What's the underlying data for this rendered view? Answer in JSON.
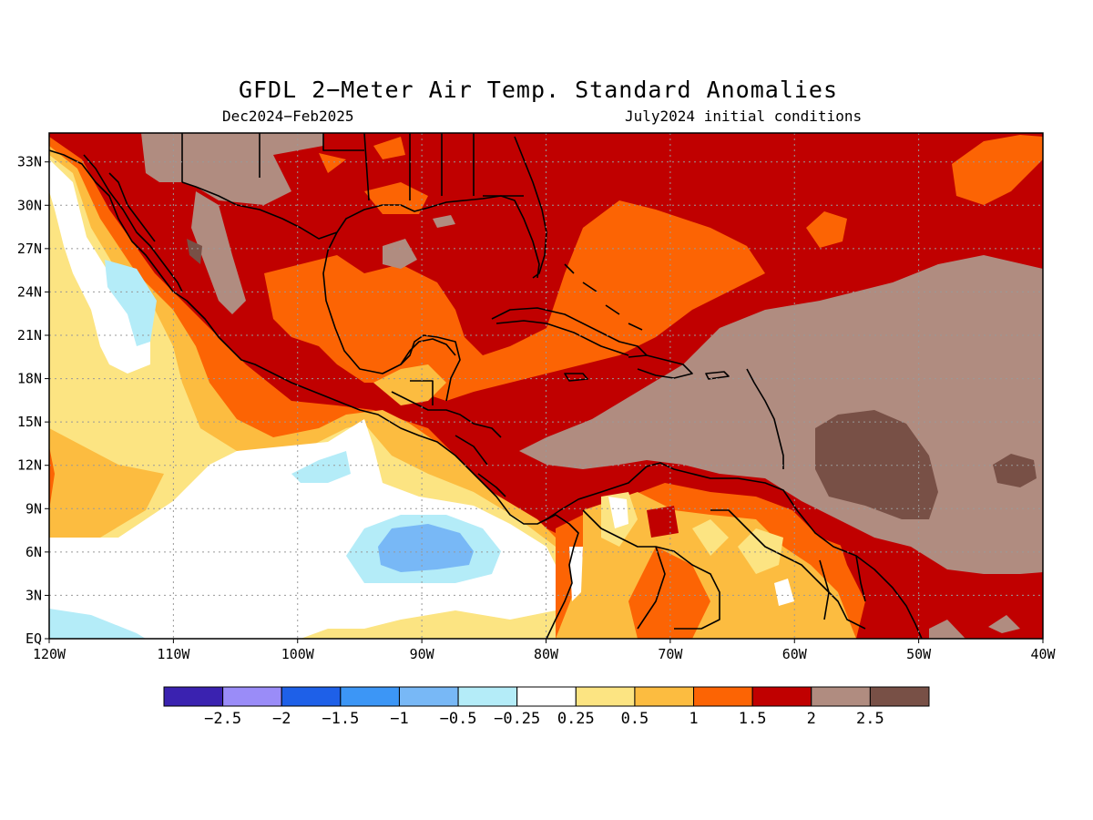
{
  "title": "GFDL 2−Meter Air Temp. Standard Anomalies",
  "subtitle_left": "Dec2024−Feb2025",
  "subtitle_right": "July2024 initial conditions",
  "map": {
    "lon_range": [
      -120,
      -40
    ],
    "lat_range": [
      0,
      35
    ],
    "lon_ticks": [
      {
        "value": -120,
        "label": "120W"
      },
      {
        "value": -110,
        "label": "110W"
      },
      {
        "value": -100,
        "label": "100W"
      },
      {
        "value": -90,
        "label": "90W"
      },
      {
        "value": -80,
        "label": "80W"
      },
      {
        "value": -70,
        "label": "70W"
      },
      {
        "value": -60,
        "label": "60W"
      },
      {
        "value": -50,
        "label": "50W"
      },
      {
        "value": -40,
        "label": "40W"
      }
    ],
    "lat_ticks": [
      {
        "value": 0,
        "label": "EQ"
      },
      {
        "value": 3,
        "label": "3N"
      },
      {
        "value": 6,
        "label": "6N"
      },
      {
        "value": 9,
        "label": "9N"
      },
      {
        "value": 12,
        "label": "12N"
      },
      {
        "value": 15,
        "label": "15N"
      },
      {
        "value": 18,
        "label": "18N"
      },
      {
        "value": 21,
        "label": "21N"
      },
      {
        "value": 24,
        "label": "24N"
      },
      {
        "value": 27,
        "label": "27N"
      },
      {
        "value": 30,
        "label": "30N"
      },
      {
        "value": 33,
        "label": "33N"
      }
    ],
    "grid": "dotted",
    "coastlines": "black"
  },
  "colorbar": {
    "colors": [
      "#3a22b0",
      "#9a8cf8",
      "#1e60e8",
      "#3c96f6",
      "#78b8f6",
      "#b4ecf8",
      "#ffffff",
      "#fce482",
      "#fcbc40",
      "#fc6404",
      "#c00000",
      "#b08c80",
      "#785046"
    ],
    "labels": [
      "−2.5",
      "−2",
      "−1.5",
      "−1",
      "−0.5",
      "−0.25",
      "0.25",
      "0.5",
      "1",
      "1.5",
      "2",
      "2.5"
    ]
  }
}
